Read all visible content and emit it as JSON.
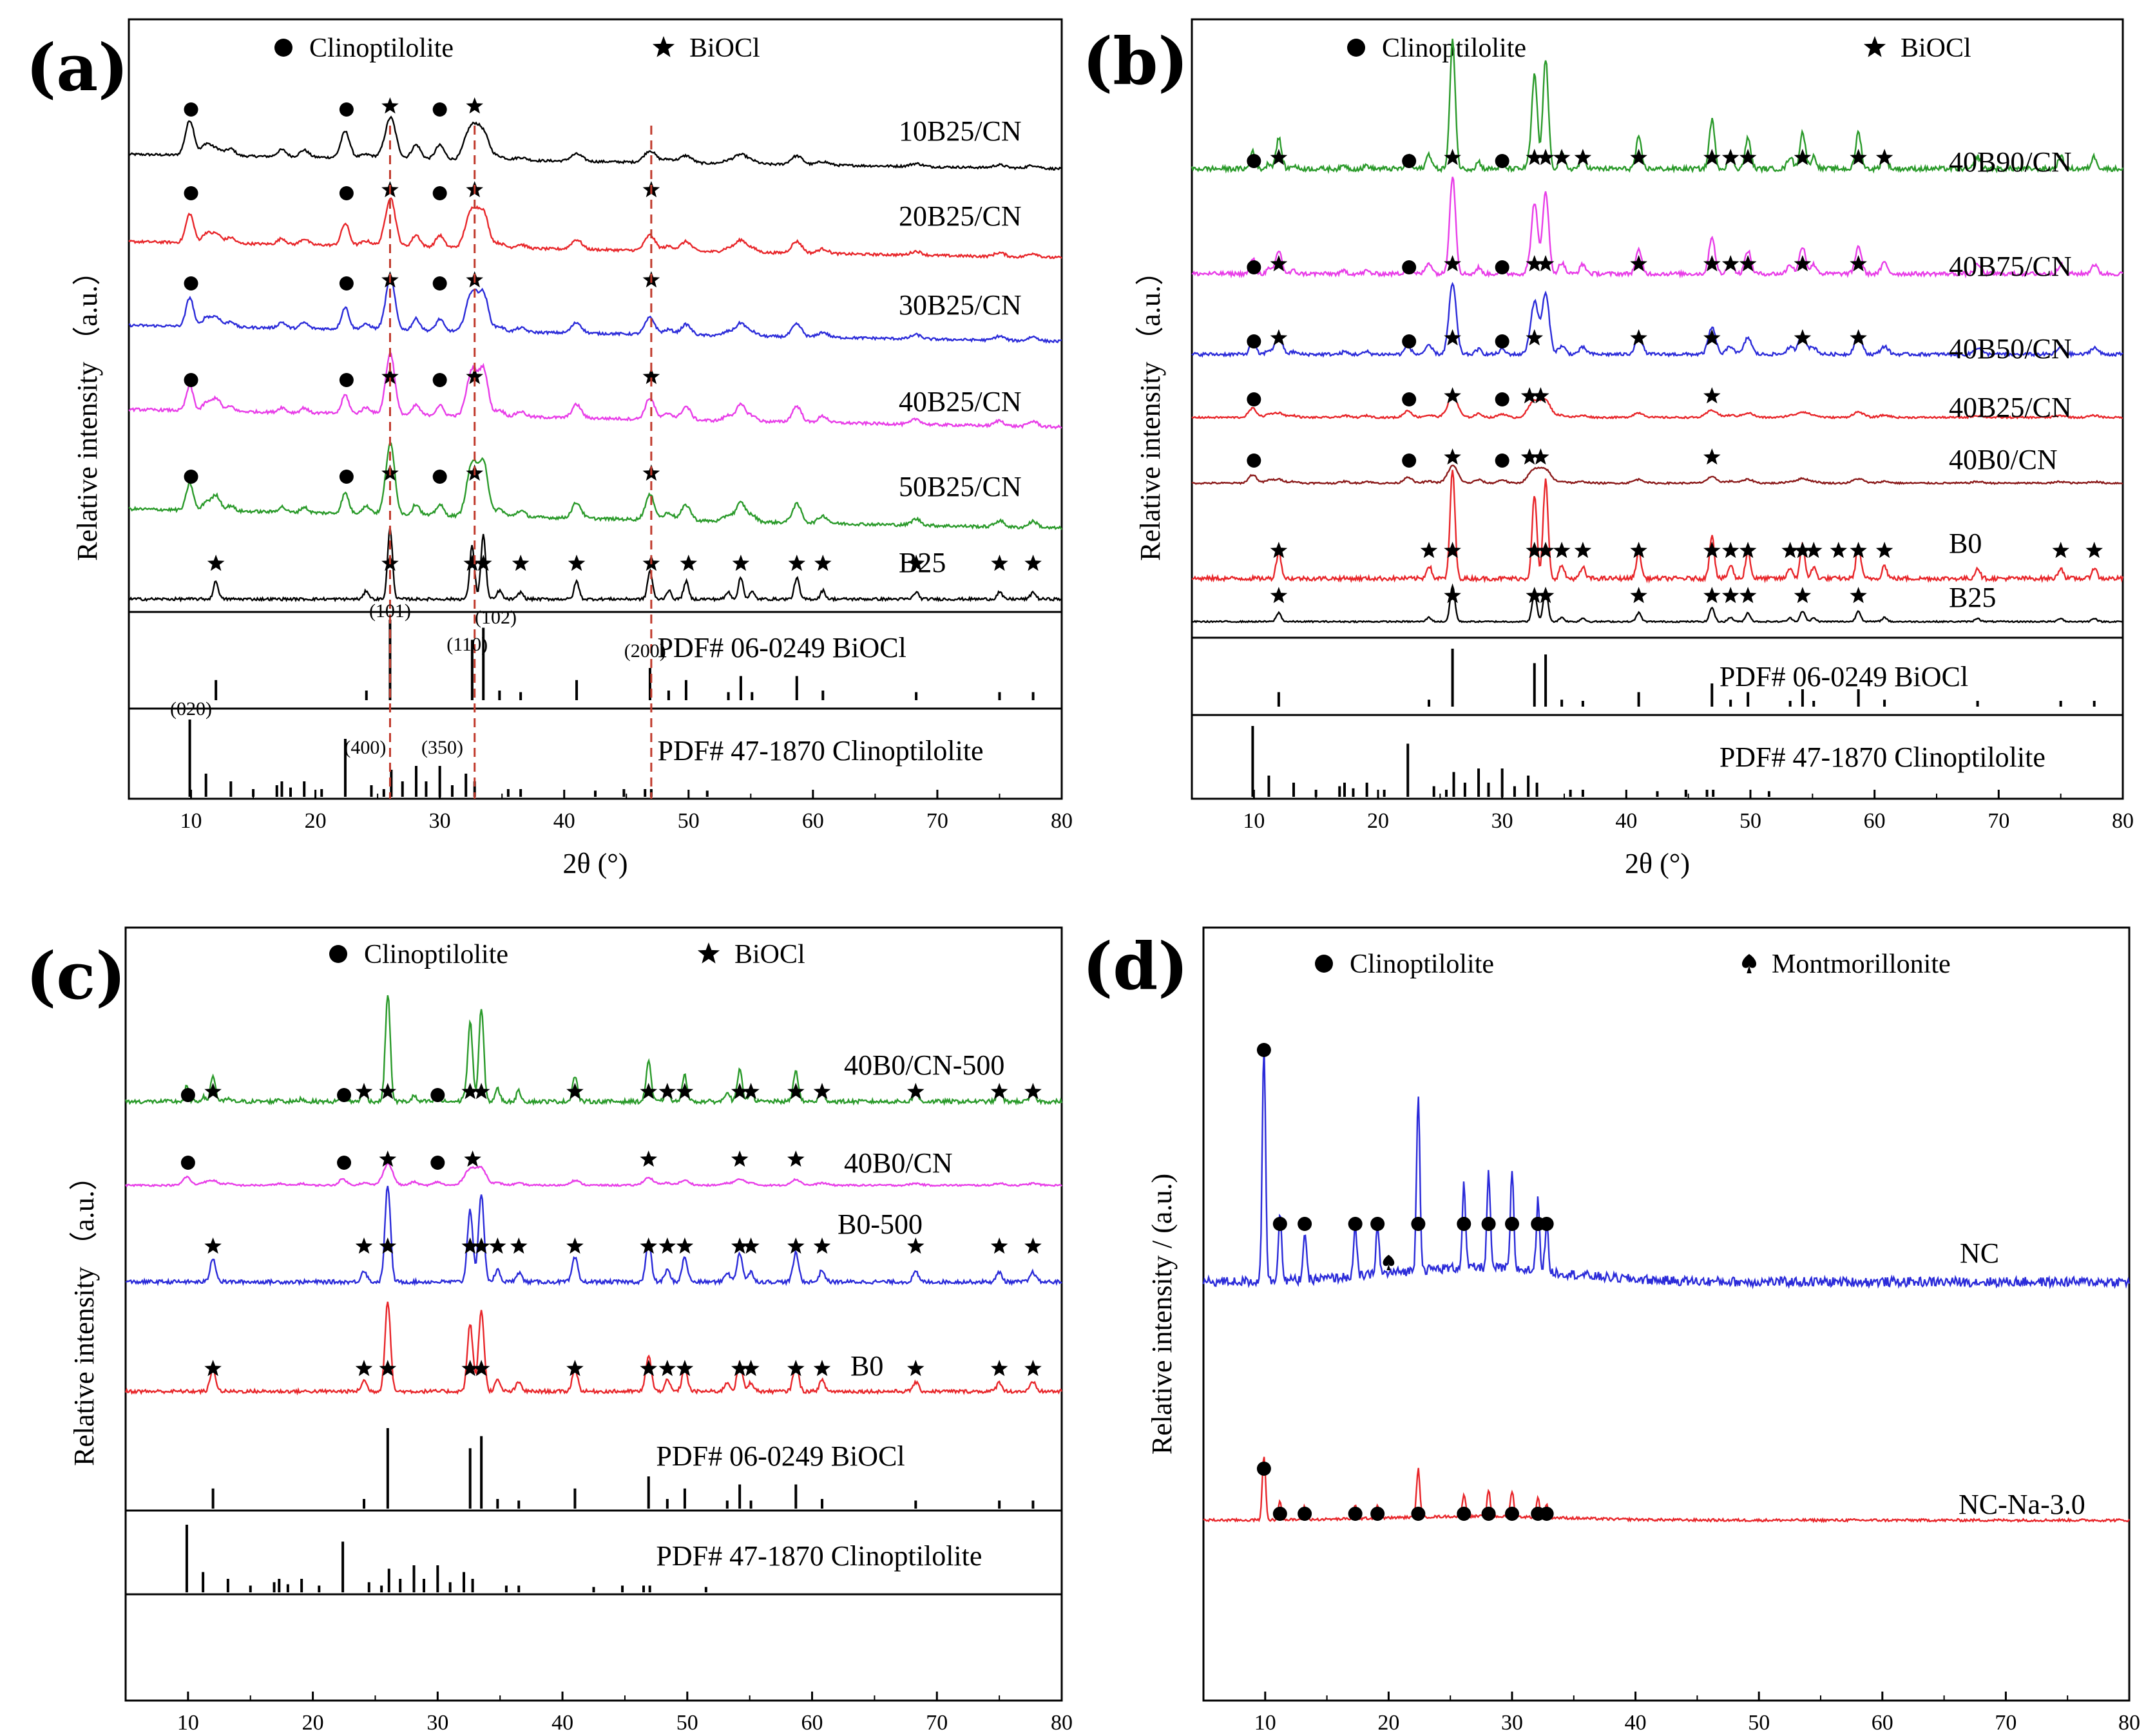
{
  "legend": {
    "circle_label": "Clinoptilolite",
    "star_label": "BiOCl",
    "spade_label": "Montmorillonite"
  },
  "axis": {
    "xlabel": "2θ (°)",
    "ylabel": "Relative intensity",
    "ylabel_unit": "（a.u.）",
    "ylabel_d": "Relative intensity / (a.u.)"
  },
  "chart_data": [
    {
      "panel": "(a)",
      "type": "line",
      "xlabel": "2θ (°)",
      "ylabel": "Relative intensity （a.u.）",
      "xlim": [
        5,
        80
      ],
      "x_ticks": [
        10,
        20,
        30,
        40,
        50,
        60,
        70,
        80
      ],
      "legend": [
        "Clinoptilolite",
        "BiOCl"
      ],
      "series": [
        {
          "name": "10B25/CN",
          "color": "#000000",
          "circles": [
            10,
            22.5,
            30
          ],
          "stars": [
            26,
            32.8
          ]
        },
        {
          "name": "20B25/CN",
          "color": "#e8262a",
          "circles": [
            10,
            22.5,
            30
          ],
          "stars": [
            26,
            32.8,
            47
          ]
        },
        {
          "name": "30B25/CN",
          "color": "#2b2bd9",
          "circles": [
            10,
            22.5,
            30
          ],
          "stars": [
            26,
            32.8,
            47
          ]
        },
        {
          "name": "40B25/CN",
          "color": "#e83de8",
          "circles": [
            10,
            22.5,
            30
          ],
          "stars": [
            26,
            32.8,
            47
          ]
        },
        {
          "name": "50B25/CN",
          "color": "#2a9a2a",
          "circles": [
            10,
            22.5,
            30
          ],
          "stars": [
            26,
            32.8,
            47
          ]
        },
        {
          "name": "B25",
          "color": "#000000",
          "circles": [],
          "stars": [
            12,
            26,
            32.6,
            33.5,
            36.5,
            41,
            47,
            50,
            54.2,
            58.7,
            60.8,
            68.3,
            75,
            77.7
          ]
        }
      ],
      "references": [
        {
          "label": "PDF# 06-0249  BiOCl"
        },
        {
          "label": "PDF# 47-1870  Clinoptilolite"
        }
      ],
      "hkl_labels": [
        "(101)",
        "(110)",
        "(102)",
        "(200)",
        "(020)",
        "(400)",
        "(350)"
      ],
      "guide_lines": [
        26,
        32.8,
        47
      ]
    },
    {
      "panel": "(b)",
      "type": "line",
      "xlabel": "2θ (°)",
      "ylabel": "Relative intensity （a.u.）",
      "xlim": [
        5,
        80
      ],
      "x_ticks": [
        10,
        20,
        30,
        40,
        50,
        60,
        70,
        80
      ],
      "legend": [
        "Clinoptilolite",
        "BiOCl"
      ],
      "series": [
        {
          "name": "40B90/CN",
          "color": "#2a9a2a",
          "circles": [
            10,
            22.5,
            30
          ],
          "stars": [
            12,
            26,
            32.6,
            33.5,
            34.8,
            36.5,
            41,
            46.9,
            48.4,
            49.8,
            54.2,
            58.7,
            60.8
          ]
        },
        {
          "name": "40B75/CN",
          "color": "#e83de8",
          "circles": [
            10,
            22.5,
            30
          ],
          "stars": [
            12,
            26,
            32.6,
            33.5,
            41,
            46.9,
            48.4,
            49.8,
            54.2,
            58.7
          ]
        },
        {
          "name": "40B50/CN",
          "color": "#2b2bd9",
          "circles": [
            10,
            22.5,
            30
          ],
          "stars": [
            12,
            26,
            32.6,
            41,
            46.9,
            54.2,
            58.7
          ]
        },
        {
          "name": "40B25/CN",
          "color": "#e8262a",
          "circles": [
            10,
            22.5,
            30
          ],
          "stars": [
            26,
            32.2,
            33.1,
            46.9
          ]
        },
        {
          "name": "40B0/CN",
          "color": "#8b1a1a",
          "circles": [
            10,
            22.5,
            30
          ],
          "stars": [
            26,
            32.2,
            33.1,
            46.9
          ]
        },
        {
          "name": "B0",
          "color": "#e8262a",
          "circles": [],
          "stars": [
            12,
            24.1,
            26,
            32.6,
            33.5,
            34.8,
            36.5,
            41,
            46.9,
            48.4,
            49.8,
            53.2,
            54.2,
            55.1,
            57.1,
            58.7,
            60.8,
            75,
            77.7
          ]
        },
        {
          "name": "B25",
          "color": "#000000",
          "circles": [],
          "stars": [
            12,
            26,
            32.6,
            33.5,
            41,
            46.9,
            48.4,
            49.8,
            54.2,
            58.7
          ]
        }
      ],
      "references": [
        {
          "label": "PDF# 06-0249  BiOCl"
        },
        {
          "label": "PDF# 47-1870  Clinoptilolite"
        }
      ]
    },
    {
      "panel": "(c)",
      "type": "line",
      "xlabel": "2θ (°)",
      "ylabel": "Relative intensity （a.u.）",
      "xlim": [
        5,
        80
      ],
      "x_ticks": [
        10,
        20,
        30,
        40,
        50,
        60,
        70,
        80
      ],
      "legend": [
        "Clinoptilolite",
        "BiOCl"
      ],
      "series": [
        {
          "name": "40B0/CN-500",
          "color": "#2a9a2a",
          "circles": [
            10,
            22.5,
            30
          ],
          "stars": [
            12,
            24.1,
            26,
            32.6,
            33.5,
            41,
            46.9,
            48.4,
            49.8,
            54.2,
            55.1,
            58.7,
            60.8,
            68.3,
            75,
            77.7
          ]
        },
        {
          "name": "40B0/CN",
          "color": "#e83de8",
          "circles": [
            10,
            22.5,
            30
          ],
          "stars": [
            26,
            32.8,
            46.9,
            54.2,
            58.7
          ]
        },
        {
          "name": "B0-500",
          "color": "#2b2bd9",
          "circles": [],
          "stars": [
            12,
            24.1,
            26,
            32.6,
            33.5,
            34.8,
            36.5,
            41,
            46.9,
            48.4,
            49.8,
            54.2,
            55.1,
            58.7,
            60.8,
            68.3,
            75,
            77.7
          ]
        },
        {
          "name": "B0",
          "color": "#e8262a",
          "circles": [],
          "stars": [
            12,
            24.1,
            26,
            32.6,
            33.5,
            41,
            46.9,
            48.4,
            49.8,
            54.2,
            55.1,
            58.7,
            60.8,
            68.3,
            75,
            77.7
          ]
        }
      ],
      "references": [
        {
          "label": "PDF# 06-0249  BiOCl"
        },
        {
          "label": "PDF# 47-1870  Clinoptilolite"
        }
      ]
    },
    {
      "panel": "(d)",
      "type": "line",
      "xlabel": "2θ (°)",
      "ylabel": "Relative intensity / (a.u.)",
      "xlim": [
        5,
        80
      ],
      "x_ticks": [
        10,
        20,
        30,
        40,
        50,
        60,
        70,
        80
      ],
      "legend": [
        "Clinoptilolite",
        "Montmorillonite"
      ],
      "series": [
        {
          "name": "NC",
          "color": "#2b2bd9",
          "circles": [
            9.9,
            11.2,
            13.2,
            17.3,
            19.1,
            22.4,
            26.1,
            28.1,
            30,
            32.1,
            32.8
          ],
          "spades": [
            20
          ]
        },
        {
          "name": "NC-Na-3.0",
          "color": "#e8262a",
          "circles": [
            9.9,
            11.2,
            13.2,
            17.3,
            19.1,
            22.4,
            26.1,
            28.1,
            30,
            32.1,
            32.8
          ],
          "spades": []
        }
      ]
    }
  ]
}
